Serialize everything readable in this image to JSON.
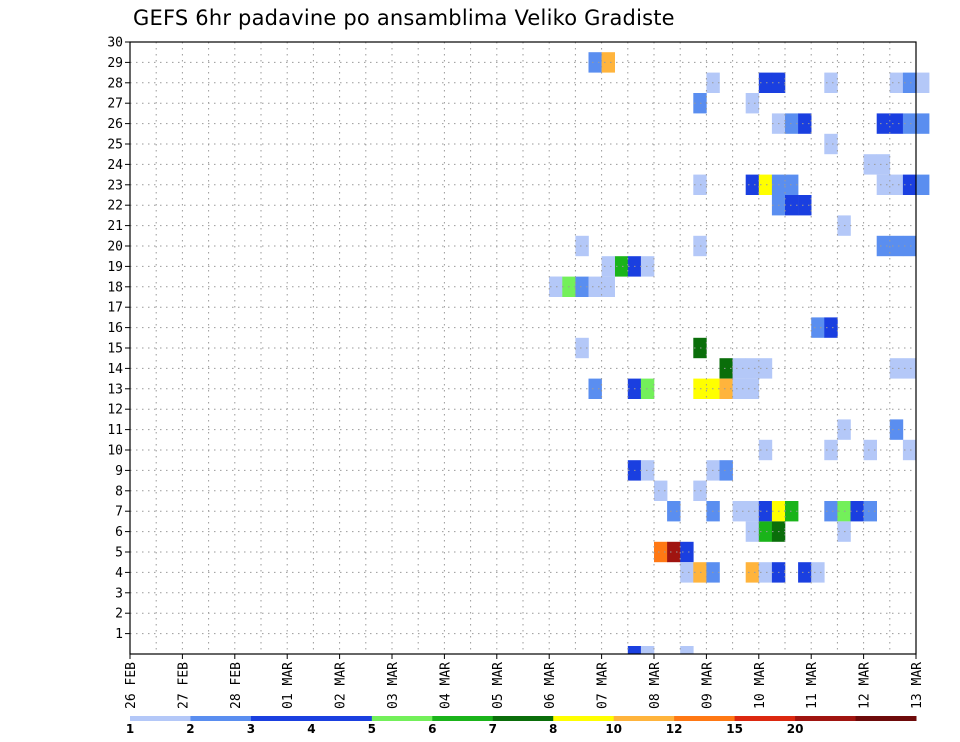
{
  "title": "GEFS 6hr padavine po ansamblima Veliko Gradiste",
  "chart_data": {
    "type": "heatmap",
    "title": "GEFS 6hr padavine po ansamblima Veliko Gradiste",
    "x_step_hours": 6,
    "x_ticks": [
      "26 FEB",
      "27 FEB",
      "28 FEB",
      "01 MAR",
      "02 MAR",
      "03 MAR",
      "04 MAR",
      "05 MAR",
      "06 MAR",
      "07 MAR",
      "08 MAR",
      "09 MAR",
      "10 MAR",
      "11 MAR",
      "12 MAR",
      "13 MAR"
    ],
    "y_ticks": [
      1,
      2,
      3,
      4,
      5,
      6,
      7,
      8,
      9,
      10,
      11,
      12,
      13,
      14,
      15,
      16,
      17,
      18,
      19,
      20,
      21,
      22,
      23,
      24,
      25,
      26,
      27,
      28,
      29,
      30
    ],
    "ylim": [
      0,
      30
    ],
    "grid": true,
    "colorbar": {
      "labels": [
        "1",
        "2",
        "3",
        "4",
        "5",
        "6",
        "7",
        "8",
        "10",
        "12",
        "15",
        "20"
      ],
      "colors": [
        "#b4c8f8",
        "#5a8ef0",
        "#1a3fe0",
        "#1a3fe0",
        "#73f05a",
        "#1ab41a",
        "#0a6e0a",
        "#ffff00",
        "#ffb43c",
        "#ff7814",
        "#dc2810",
        "#a01410",
        "#6e0a0a"
      ]
    },
    "cells": [
      {
        "time": "06 MAR 18z",
        "member": 29,
        "level": 2
      },
      {
        "time": "07 MAR 00z",
        "member": 29,
        "level": 9
      },
      {
        "time": "09 MAR 00z",
        "member": 28,
        "level": 1
      },
      {
        "time": "10 MAR 00z",
        "member": 28,
        "level": 3
      },
      {
        "time": "10 MAR 06z",
        "member": 28,
        "level": 3
      },
      {
        "time": "11 MAR 06z",
        "member": 28,
        "level": 1
      },
      {
        "time": "12 MAR 12z",
        "member": 28,
        "level": 1
      },
      {
        "time": "12 MAR 18z",
        "member": 28,
        "level": 2
      },
      {
        "time": "13 MAR 00z",
        "member": 28,
        "level": 1
      },
      {
        "time": "08 MAR 18z",
        "member": 27,
        "level": 2
      },
      {
        "time": "09 MAR 18z",
        "member": 27,
        "level": 1
      },
      {
        "time": "10 MAR 06z",
        "member": 26,
        "level": 1
      },
      {
        "time": "10 MAR 12z",
        "member": 26,
        "level": 2
      },
      {
        "time": "10 MAR 18z",
        "member": 26,
        "level": 3
      },
      {
        "time": "12 MAR 06z",
        "member": 26,
        "level": 3
      },
      {
        "time": "12 MAR 12z",
        "member": 26,
        "level": 4
      },
      {
        "time": "12 MAR 18z",
        "member": 26,
        "level": 2
      },
      {
        "time": "13 MAR 00z",
        "member": 26,
        "level": 2
      },
      {
        "time": "11 MAR 06z",
        "member": 25,
        "level": 1
      },
      {
        "time": "12 MAR 00z",
        "member": 24,
        "level": 1
      },
      {
        "time": "12 MAR 06z",
        "member": 24,
        "level": 1
      },
      {
        "time": "08 MAR 18z",
        "member": 23,
        "level": 1
      },
      {
        "time": "09 MAR 18z",
        "member": 23,
        "level": 3
      },
      {
        "time": "10 MAR 00z",
        "member": 23,
        "level": 8
      },
      {
        "time": "10 MAR 06z",
        "member": 23,
        "level": 2
      },
      {
        "time": "10 MAR 12z",
        "member": 23,
        "level": 2
      },
      {
        "time": "12 MAR 06z",
        "member": 23,
        "level": 1
      },
      {
        "time": "12 MAR 12z",
        "member": 23,
        "level": 1
      },
      {
        "time": "12 MAR 18z",
        "member": 23,
        "level": 3
      },
      {
        "time": "13 MAR 00z",
        "member": 23,
        "level": 2
      },
      {
        "time": "10 MAR 06z",
        "member": 22,
        "level": 2
      },
      {
        "time": "10 MAR 12z",
        "member": 22,
        "level": 3
      },
      {
        "time": "10 MAR 18z",
        "member": 22,
        "level": 4
      },
      {
        "time": "11 MAR 12z",
        "member": 21,
        "level": 1
      },
      {
        "time": "08 MAR 18z",
        "member": 20,
        "level": 1
      },
      {
        "time": "12 MAR 06z",
        "member": 20,
        "level": 2
      },
      {
        "time": "12 MAR 12z",
        "member": 20,
        "level": 2
      },
      {
        "time": "12 MAR 18z",
        "member": 20,
        "level": 2
      },
      {
        "time": "06 MAR 12z",
        "member": 20,
        "level": 1
      },
      {
        "time": "07 MAR 06z",
        "member": 19,
        "level": 6
      },
      {
        "time": "07 MAR 12z",
        "member": 19,
        "level": 4
      },
      {
        "time": "07 MAR 18z",
        "member": 19,
        "level": 1
      },
      {
        "time": "06 MAR 00z",
        "member": 18,
        "level": 1
      },
      {
        "time": "07 MAR 00z",
        "member": 19,
        "level": 1
      },
      {
        "time": "06 MAR 00z",
        "member": 18,
        "level": 1
      },
      {
        "time": "06 MAR 06z",
        "member": 18,
        "level": 5
      },
      {
        "time": "06 MAR 12z",
        "member": 18,
        "level": 2
      },
      {
        "time": "06 MAR 18z",
        "member": 18,
        "level": 1
      },
      {
        "time": "07 MAR 00z",
        "member": 18,
        "level": 1
      },
      {
        "time": "11 MAR 00z",
        "member": 16,
        "level": 2
      },
      {
        "time": "11 MAR 06z",
        "member": 16,
        "level": 3
      },
      {
        "time": "06 MAR 12z",
        "member": 15,
        "level": 1
      },
      {
        "time": "08 MAR 18z",
        "member": 15,
        "level": 7
      },
      {
        "time": "09 MAR 06z",
        "member": 14,
        "level": 7
      },
      {
        "time": "09 MAR 12z",
        "member": 14,
        "level": 1
      },
      {
        "time": "09 MAR 18z",
        "member": 14,
        "level": 1
      },
      {
        "time": "10 MAR 00z",
        "member": 14,
        "level": 1
      },
      {
        "time": "12 MAR 12z",
        "member": 14,
        "level": 1
      },
      {
        "time": "12 MAR 18z",
        "member": 14,
        "level": 1
      },
      {
        "time": "06 MAR 18z",
        "member": 13,
        "level": 2
      },
      {
        "time": "07 MAR 12z",
        "member": 13,
        "level": 3
      },
      {
        "time": "07 MAR 18z",
        "member": 13,
        "level": 5
      },
      {
        "time": "08 MAR 18z",
        "member": 13,
        "level": 8
      },
      {
        "time": "09 MAR 00z",
        "member": 13,
        "level": 8
      },
      {
        "time": "09 MAR 06z",
        "member": 13,
        "level": 9
      },
      {
        "time": "09 MAR 12z",
        "member": 13,
        "level": 1
      },
      {
        "time": "09 MAR 18z",
        "member": 13,
        "level": 1
      },
      {
        "time": "11 MAR 12z",
        "member": 11,
        "level": 1
      },
      {
        "time": "12 MAR 12z",
        "member": 11,
        "level": 2
      },
      {
        "time": "10 MAR 00z",
        "member": 10,
        "level": 1
      },
      {
        "time": "11 MAR 06z",
        "member": 10,
        "level": 1
      },
      {
        "time": "12 MAR 00z",
        "member": 10,
        "level": 1
      },
      {
        "time": "12 MAR 18z",
        "member": 10,
        "level": 1
      },
      {
        "time": "07 MAR 12z",
        "member": 9,
        "level": 3
      },
      {
        "time": "07 MAR 18z",
        "member": 9,
        "level": 1
      },
      {
        "time": "09 MAR 00z",
        "member": 9,
        "level": 1
      },
      {
        "time": "09 MAR 06z",
        "member": 9,
        "level": 2
      },
      {
        "time": "08 MAR 00z",
        "member": 8,
        "level": 1
      },
      {
        "time": "08 MAR 18z",
        "member": 8,
        "level": 1
      },
      {
        "time": "08 MAR 06z",
        "member": 7,
        "level": 2
      },
      {
        "time": "09 MAR 00z",
        "member": 7,
        "level": 2
      },
      {
        "time": "09 MAR 12z",
        "member": 7,
        "level": 1
      },
      {
        "time": "09 MAR 18z",
        "member": 7,
        "level": 1
      },
      {
        "time": "10 MAR 00z",
        "member": 7,
        "level": 3
      },
      {
        "time": "10 MAR 06z",
        "member": 7,
        "level": 8
      },
      {
        "time": "10 MAR 12z",
        "member": 7,
        "level": 6
      },
      {
        "time": "11 MAR 06z",
        "member": 7,
        "level": 2
      },
      {
        "time": "11 MAR 12z",
        "member": 7,
        "level": 5
      },
      {
        "time": "11 MAR 18z",
        "member": 7,
        "level": 4
      },
      {
        "time": "12 MAR 00z",
        "member": 7,
        "level": 2
      },
      {
        "time": "09 MAR 18z",
        "member": 6,
        "level": 1
      },
      {
        "time": "10 MAR 00z",
        "member": 6,
        "level": 6
      },
      {
        "time": "10 MAR 06z",
        "member": 6,
        "level": 7
      },
      {
        "time": "11 MAR 12z",
        "member": 6,
        "level": 1
      },
      {
        "time": "08 MAR 00z",
        "member": 5,
        "level": 10
      },
      {
        "time": "08 MAR 06z",
        "member": 5,
        "level": 12
      },
      {
        "time": "08 MAR 12z",
        "member": 5,
        "level": 4
      },
      {
        "time": "08 MAR 12z",
        "member": 4,
        "level": 1
      },
      {
        "time": "08 MAR 18z",
        "member": 4,
        "level": 9
      },
      {
        "time": "09 MAR 00z",
        "member": 4,
        "level": 2
      },
      {
        "time": "09 MAR 18z",
        "member": 4,
        "level": 9
      },
      {
        "time": "10 MAR 00z",
        "member": 4,
        "level": 1
      },
      {
        "time": "10 MAR 06z",
        "member": 4,
        "level": 4
      },
      {
        "time": "10 MAR 18z",
        "member": 4,
        "level": 3
      },
      {
        "time": "11 MAR 00z",
        "member": 4,
        "level": 1
      },
      {
        "time": "07 MAR 12z",
        "member": 0,
        "level": 3
      },
      {
        "time": "07 MAR 18z",
        "member": 0,
        "level": 1
      },
      {
        "time": "08 MAR 12z",
        "member": 0,
        "level": 1
      }
    ]
  }
}
